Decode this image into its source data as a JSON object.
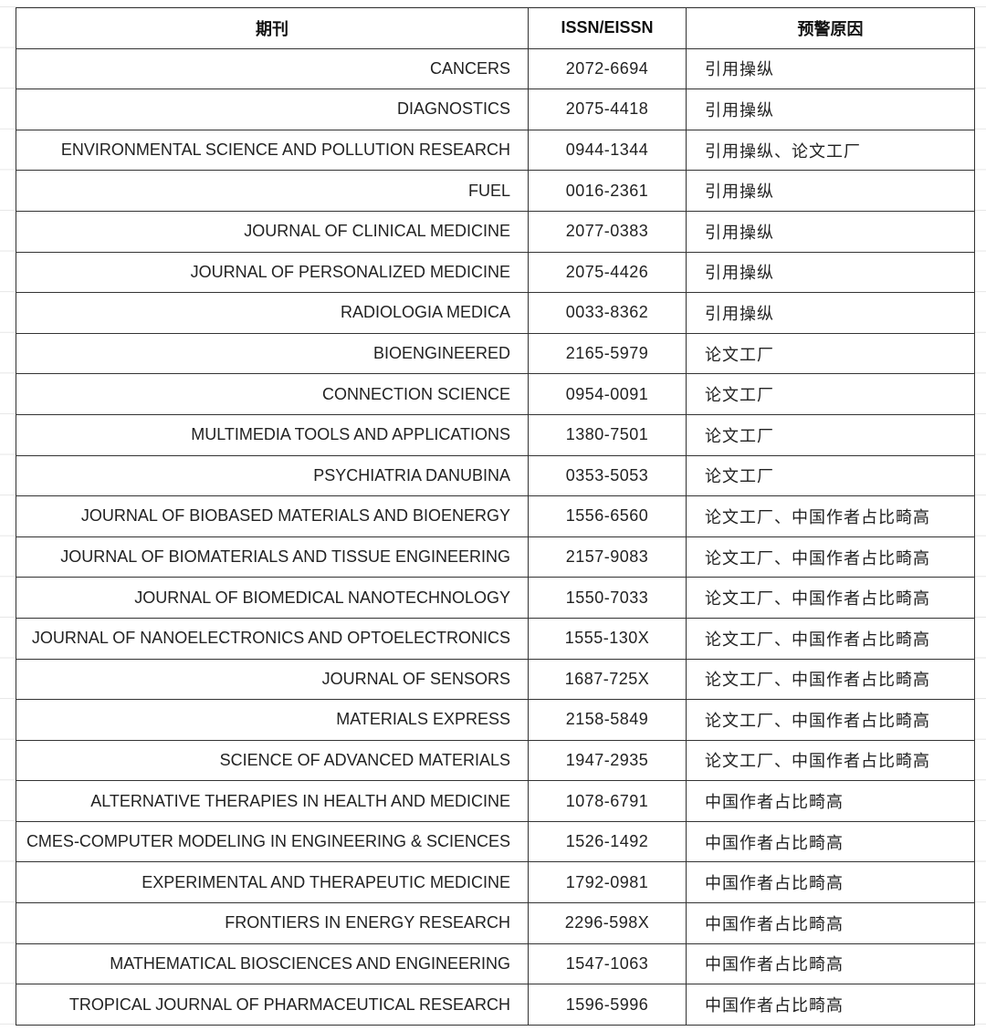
{
  "headers": {
    "journal": "期刊",
    "issn": "ISSN/EISSN",
    "reason": "预警原因"
  },
  "rows": [
    {
      "journal": "CANCERS",
      "issn": "2072-6694",
      "reason": "引用操纵"
    },
    {
      "journal": "DIAGNOSTICS",
      "issn": "2075-4418",
      "reason": "引用操纵"
    },
    {
      "journal": "ENVIRONMENTAL SCIENCE AND POLLUTION RESEARCH",
      "issn": "0944-1344",
      "reason": "引用操纵、论文工厂"
    },
    {
      "journal": "FUEL",
      "issn": "0016-2361",
      "reason": "引用操纵"
    },
    {
      "journal": "JOURNAL OF CLINICAL MEDICINE",
      "issn": "2077-0383",
      "reason": "引用操纵"
    },
    {
      "journal": "JOURNAL OF PERSONALIZED MEDICINE",
      "issn": "2075-4426",
      "reason": "引用操纵"
    },
    {
      "journal": "RADIOLOGIA MEDICA",
      "issn": "0033-8362",
      "reason": "引用操纵"
    },
    {
      "journal": "BIOENGINEERED",
      "issn": "2165-5979",
      "reason": "论文工厂"
    },
    {
      "journal": "CONNECTION SCIENCE",
      "issn": "0954-0091",
      "reason": "论文工厂"
    },
    {
      "journal": "MULTIMEDIA TOOLS AND APPLICATIONS",
      "issn": "1380-7501",
      "reason": "论文工厂"
    },
    {
      "journal": "PSYCHIATRIA DANUBINA",
      "issn": "0353-5053",
      "reason": "论文工厂"
    },
    {
      "journal": "JOURNAL OF BIOBASED MATERIALS AND BIOENERGY",
      "issn": "1556-6560",
      "reason": "论文工厂、中国作者占比畸高"
    },
    {
      "journal": "JOURNAL OF BIOMATERIALS AND TISSUE ENGINEERING",
      "issn": "2157-9083",
      "reason": "论文工厂、中国作者占比畸高"
    },
    {
      "journal": "JOURNAL OF BIOMEDICAL NANOTECHNOLOGY",
      "issn": "1550-7033",
      "reason": "论文工厂、中国作者占比畸高"
    },
    {
      "journal": "JOURNAL OF NANOELECTRONICS AND OPTOELECTRONICS",
      "issn": "1555-130X",
      "reason": "论文工厂、中国作者占比畸高"
    },
    {
      "journal": "JOURNAL OF SENSORS",
      "issn": "1687-725X",
      "reason": "论文工厂、中国作者占比畸高"
    },
    {
      "journal": "MATERIALS EXPRESS",
      "issn": "2158-5849",
      "reason": "论文工厂、中国作者占比畸高"
    },
    {
      "journal": "SCIENCE OF ADVANCED MATERIALS",
      "issn": "1947-2935",
      "reason": "论文工厂、中国作者占比畸高"
    },
    {
      "journal": "ALTERNATIVE THERAPIES IN HEALTH AND MEDICINE",
      "issn": "1078-6791",
      "reason": "中国作者占比畸高"
    },
    {
      "journal": "CMES-COMPUTER MODELING IN ENGINEERING & SCIENCES",
      "issn": "1526-1492",
      "reason": "中国作者占比畸高"
    },
    {
      "journal": "EXPERIMENTAL AND THERAPEUTIC MEDICINE",
      "issn": "1792-0981",
      "reason": "中国作者占比畸高"
    },
    {
      "journal": "FRONTIERS IN ENERGY RESEARCH",
      "issn": "2296-598X",
      "reason": "中国作者占比畸高"
    },
    {
      "journal": "MATHEMATICAL BIOSCIENCES AND ENGINEERING",
      "issn": "1547-1063",
      "reason": "中国作者占比畸高"
    },
    {
      "journal": "TROPICAL JOURNAL OF PHARMACEUTICAL RESEARCH",
      "issn": "1596-5996",
      "reason": "中国作者占比畸高"
    }
  ]
}
